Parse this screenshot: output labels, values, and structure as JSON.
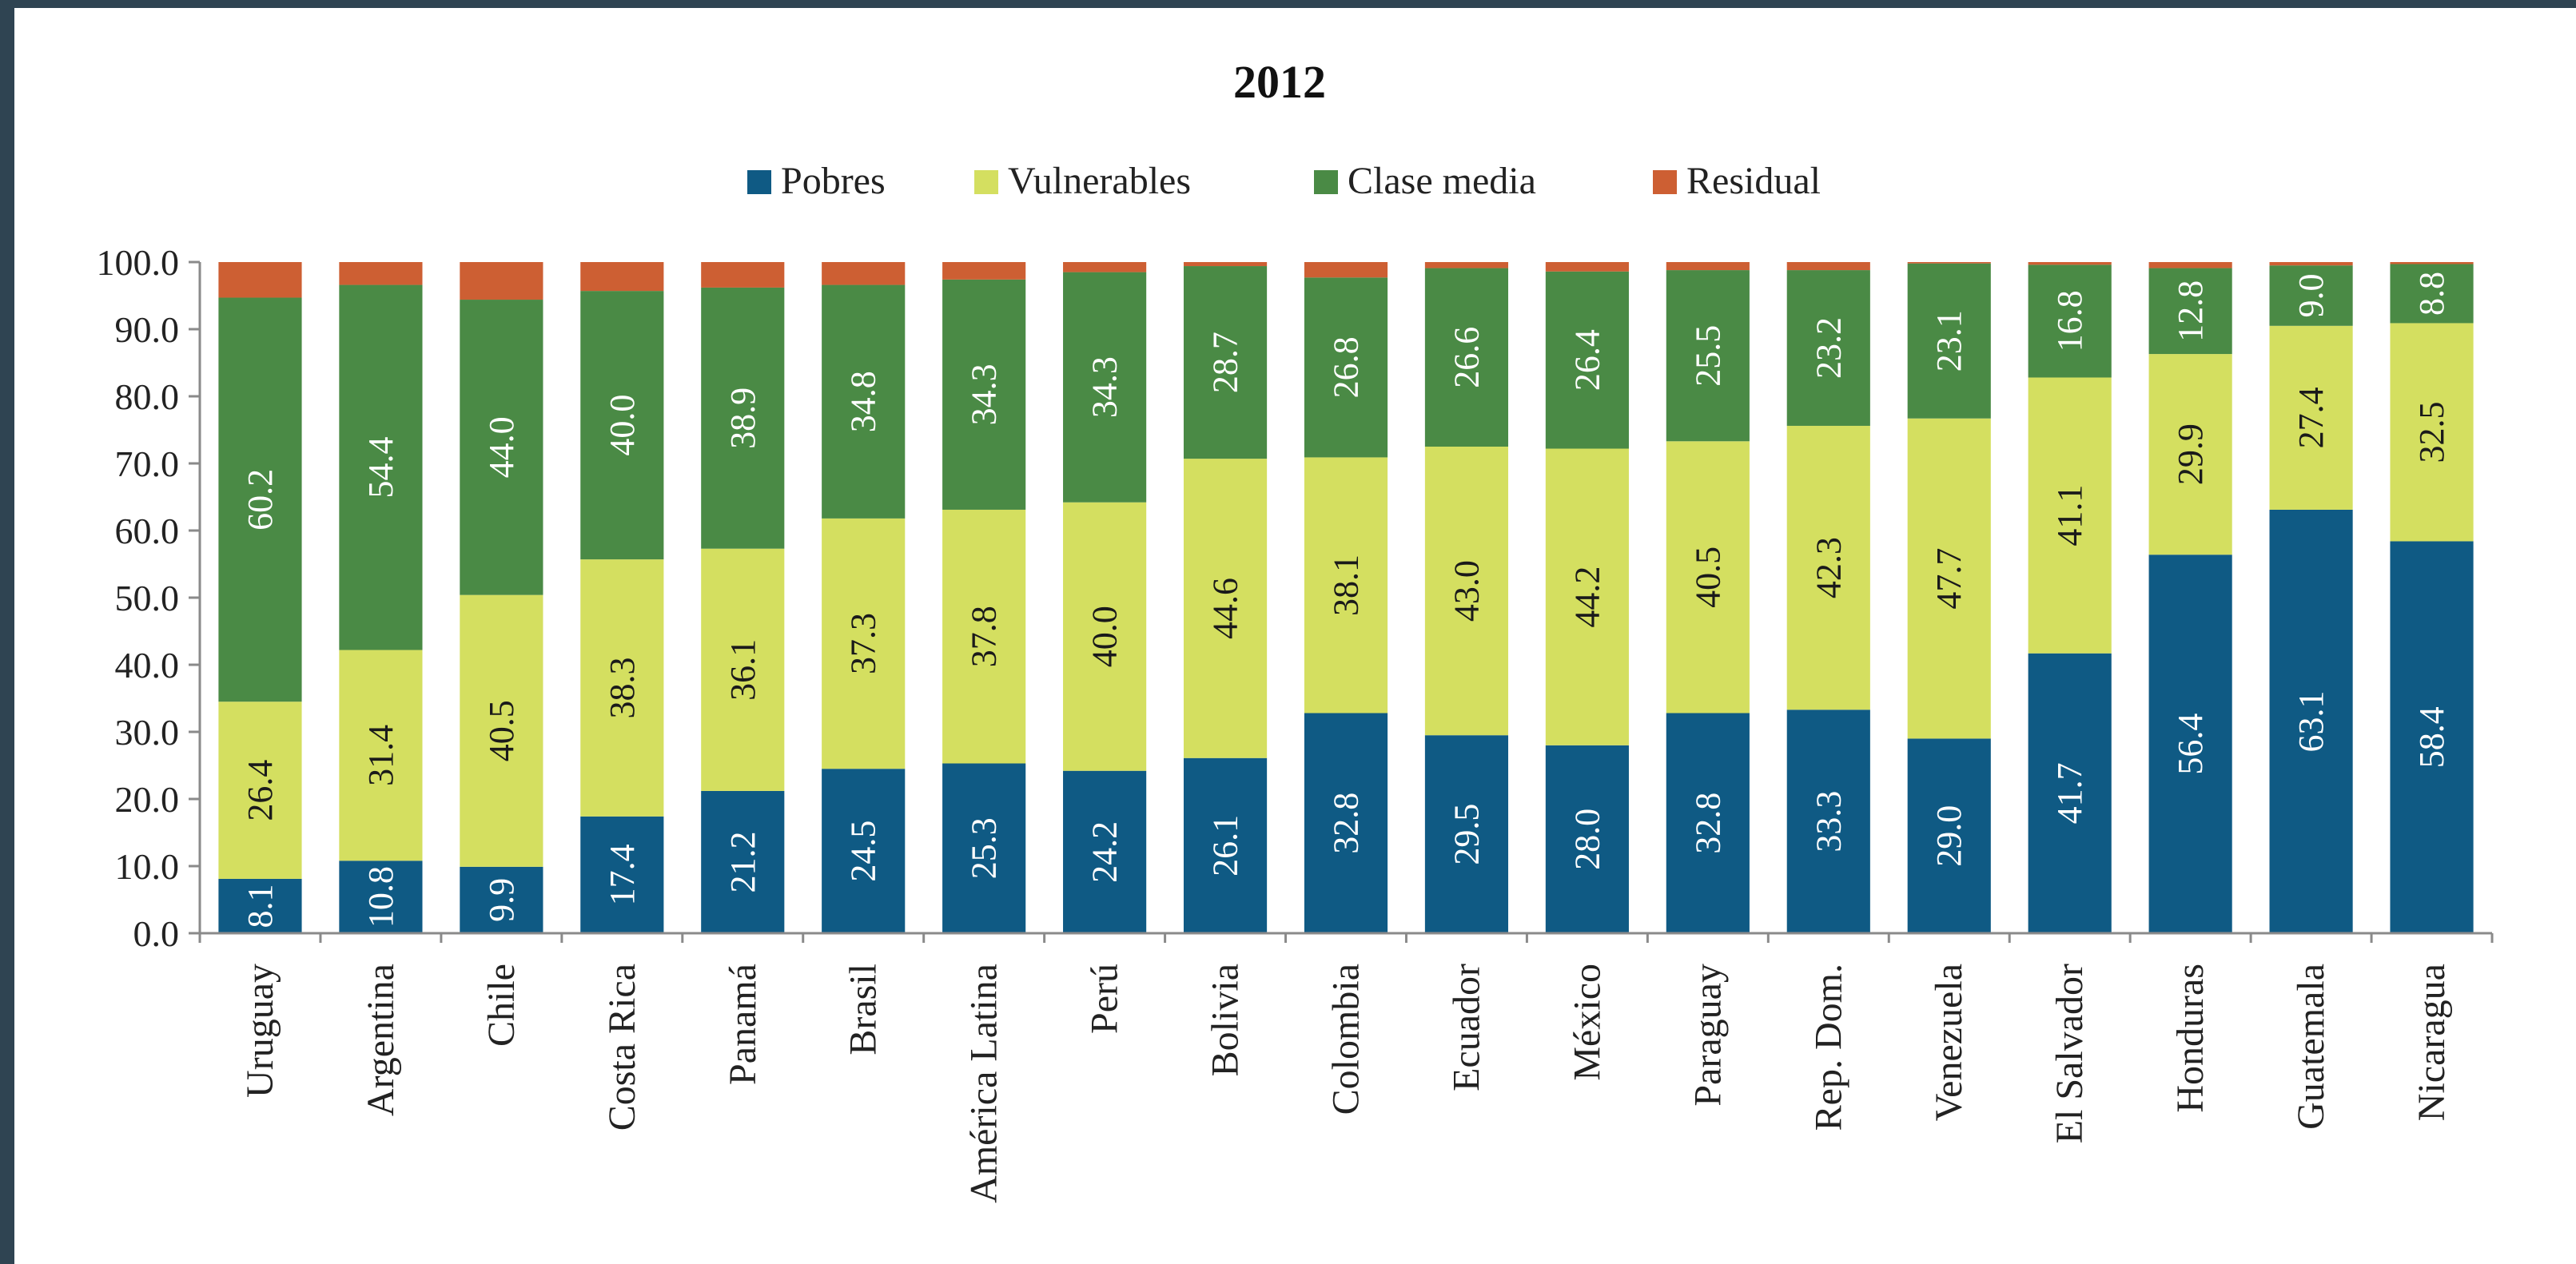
{
  "chart_data": {
    "type": "bar",
    "stacked": true,
    "title": "2012",
    "xlabel": "",
    "ylabel": "",
    "ylim": [
      0,
      100
    ],
    "yticks": [
      "0.0",
      "10.0",
      "20.0",
      "30.0",
      "40.0",
      "50.0",
      "60.0",
      "70.0",
      "80.0",
      "90.0",
      "100.0"
    ],
    "legend_position": "top-center",
    "grid": false,
    "categories": [
      "Uruguay",
      "Argentina",
      "Chile",
      "Costa Rica",
      "Panamá",
      "Brasil",
      "América Latina",
      "Perú",
      "Bolivia",
      "Colombia",
      "Ecuador",
      "México",
      "Paraguay",
      "Rep. Dom.",
      "Venezuela",
      "El Salvador",
      "Honduras",
      "Guatemala",
      "Nicaragua"
    ],
    "series": [
      {
        "name": "Pobres",
        "color": "#0f5a84",
        "values": [
          8.1,
          10.8,
          9.9,
          17.4,
          21.2,
          24.5,
          25.3,
          24.2,
          26.1,
          32.8,
          29.5,
          28.0,
          32.8,
          33.3,
          29.0,
          41.7,
          56.4,
          63.1,
          58.4
        ],
        "labels": [
          "8.1",
          "10.8",
          "9.9",
          "17.4",
          "21.2",
          "24.5",
          "25.3",
          "24.2",
          "26.1",
          "32.8",
          "29.5",
          "28.0",
          "32.8",
          "33.3",
          "29.0",
          "41.7",
          "56.4",
          "63.1",
          "58.4"
        ]
      },
      {
        "name": "Vulnerables",
        "color": "#d4df60",
        "values": [
          26.4,
          31.4,
          40.5,
          38.3,
          36.1,
          37.3,
          37.8,
          40.0,
          44.6,
          38.1,
          43.0,
          44.2,
          40.5,
          42.3,
          47.7,
          41.1,
          29.9,
          27.4,
          32.5
        ],
        "labels": [
          "26.4",
          "31.4",
          "40.5",
          "38.3",
          "36.1",
          "37.3",
          "37.8",
          "40.0",
          "44.6",
          "38.1",
          "43.0",
          "44.2",
          "40.5",
          "42.3",
          "47.7",
          "41.1",
          "29.9",
          "27.4",
          "32.5"
        ]
      },
      {
        "name": "Clase media",
        "color": "#4a8a45",
        "values": [
          60.2,
          54.4,
          44.0,
          40.0,
          38.9,
          34.8,
          34.3,
          34.3,
          28.7,
          26.8,
          26.6,
          26.4,
          25.5,
          23.2,
          23.1,
          16.8,
          12.8,
          9.0,
          8.8
        ],
        "labels": [
          "60.2",
          "54.4",
          "44.0",
          "40.0",
          "38.9",
          "34.8",
          "34.3",
          "34.3",
          "28.7",
          "26.8",
          "26.6",
          "26.4",
          "25.5",
          "23.2",
          "23.1",
          "16.8",
          "12.8",
          "9.0",
          "8.8"
        ]
      },
      {
        "name": "Residual",
        "color": "#cd5f33",
        "values": [
          5.3,
          3.4,
          5.6,
          4.3,
          3.8,
          3.4,
          2.6,
          1.5,
          0.6,
          2.3,
          0.9,
          1.4,
          1.2,
          1.2,
          0.2,
          0.4,
          0.9,
          0.5,
          0.3
        ],
        "labels": [
          "",
          "",
          "",
          "",
          "",
          "",
          "",
          "",
          "",
          "",
          "",
          "",
          "",
          "",
          "",
          "",
          "",
          "",
          ""
        ]
      }
    ]
  }
}
